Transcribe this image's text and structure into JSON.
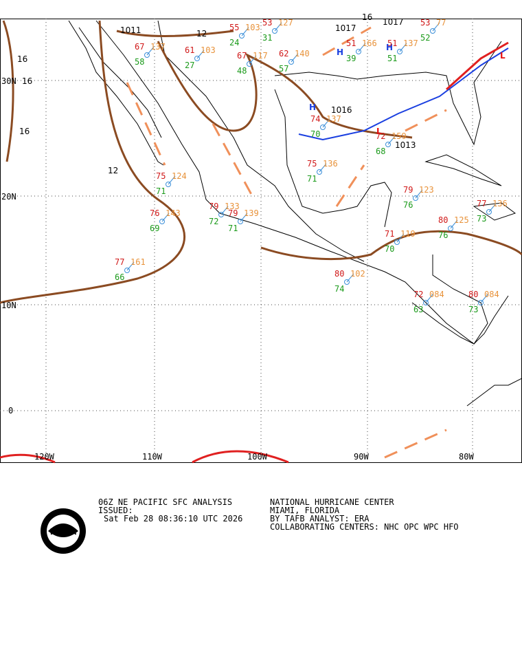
{
  "map": {
    "lat_labels": [
      "30N",
      "20N",
      "10N",
      "0"
    ],
    "lon_labels": [
      "120W",
      "110W",
      "100W",
      "90W",
      "80W"
    ],
    "isobar_labels": [
      "1011",
      "12",
      "16",
      "16",
      "16",
      "12",
      "16",
      "1017",
      "1017",
      "1016",
      "1013"
    ],
    "pressure_centers": [
      {
        "symbol": "H"
      },
      {
        "symbol": "H"
      },
      {
        "symbol": "H"
      },
      {
        "symbol": "L"
      },
      {
        "symbol": "L"
      }
    ],
    "stations": [
      {
        "temp": 75,
        "dew": 71,
        "pres": "124"
      },
      {
        "temp": 76,
        "dew": 69,
        "pres": "143"
      },
      {
        "temp": 77,
        "dew": 66,
        "pres": "161"
      },
      {
        "temp": 79,
        "dew": 72,
        "pres": "133"
      },
      {
        "temp": 79,
        "dew": 71,
        "pres": "139"
      },
      {
        "temp": 75,
        "dew": 71,
        "pres": "136"
      },
      {
        "temp": 74,
        "dew": 70,
        "pres": "137"
      },
      {
        "temp": 80,
        "dew": 74,
        "pres": "102"
      },
      {
        "temp": 72,
        "dew": 63,
        "pres": "084"
      },
      {
        "temp": 80,
        "dew": 73,
        "pres": "084"
      },
      {
        "temp": 79,
        "dew": 76,
        "pres": "123"
      },
      {
        "temp": 80,
        "dew": 76,
        "pres": "125"
      },
      {
        "temp": 77,
        "dew": 73,
        "pres": "136"
      },
      {
        "temp": 71,
        "dew": 70,
        "pres": "119"
      },
      {
        "temp": 62,
        "dew": 57,
        "pres": "140"
      },
      {
        "temp": 67,
        "dew": 48,
        "pres": "117"
      },
      {
        "temp": 61,
        "dew": 27,
        "pres": "103"
      },
      {
        "temp": 67,
        "dew": 58,
        "pres": "137"
      },
      {
        "temp": 55,
        "dew": 24,
        "pres": "103"
      },
      {
        "temp": 53,
        "dew": 31,
        "pres": "127"
      },
      {
        "temp": 51,
        "dew": 39,
        "pres": "166"
      },
      {
        "temp": 51,
        "dew": 51,
        "pres": "137"
      },
      {
        "temp": 53,
        "dew": 52,
        "pres": "77"
      },
      {
        "temp": 72,
        "dew": 68,
        "pres": "159"
      }
    ]
  },
  "footer": {
    "product": "06Z NE PACIFIC SFC ANALYSIS",
    "issued": "ISSUED:",
    "date": "Sat Feb 28 08:36:10 UTC 2026",
    "center": "NATIONAL HURRICANE CENTER",
    "city": "MIAMI, FLORIDA",
    "analyst": "BY TAFB ANALYST: ERA",
    "collab": "COLLABORATING CENTERS: NHC OPC WPC HFO",
    "logo": "NOAA"
  }
}
